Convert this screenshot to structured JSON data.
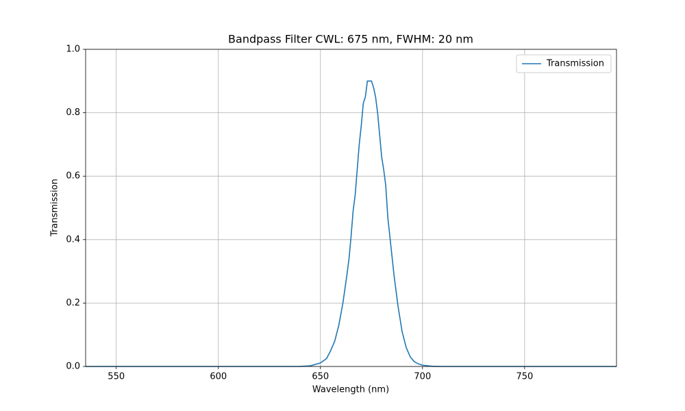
{
  "chart_data": {
    "type": "line",
    "title": "Bandpass Filter CWL: 675 nm, FWHM: 20 nm",
    "x_label": "Wavelength (nm)",
    "y_label": "Transmission",
    "x": [
      535,
      630,
      640,
      645,
      650,
      653,
      655,
      657,
      659,
      661,
      663,
      664,
      665,
      666,
      667,
      668,
      669,
      670,
      671,
      672,
      673,
      674,
      675,
      676,
      677,
      678,
      679,
      680,
      681,
      682,
      683,
      684,
      685,
      686,
      687,
      688,
      689,
      690,
      692,
      694,
      696,
      698,
      700,
      705,
      710,
      795
    ],
    "series": [
      {
        "name": "Transmission",
        "color": "#1f77b4",
        "values": [
          0,
          0,
          0.0002,
          0.002,
          0.011,
          0.025,
          0.05,
          0.08,
          0.13,
          0.2,
          0.29,
          0.34,
          0.41,
          0.49,
          0.54,
          0.62,
          0.7,
          0.76,
          0.83,
          0.85,
          0.9,
          0.9,
          0.9,
          0.88,
          0.85,
          0.8,
          0.73,
          0.66,
          0.62,
          0.57,
          0.47,
          0.41,
          0.35,
          0.29,
          0.24,
          0.19,
          0.15,
          0.11,
          0.06,
          0.03,
          0.015,
          0.008,
          0.004,
          0.0005,
          0,
          0
        ]
      }
    ],
    "xlim": [
      535,
      795
    ],
    "ylim": [
      0,
      1
    ],
    "xticks": [
      550,
      600,
      650,
      700,
      750
    ],
    "yticks": [
      {
        "value": 0,
        "label": "0.0"
      },
      {
        "value": 0.2,
        "label": "0.2"
      },
      {
        "value": 0.4,
        "label": "0.4"
      },
      {
        "value": 0.6,
        "label": "0.6"
      },
      {
        "value": 0.8,
        "label": "0.8"
      },
      {
        "value": 1,
        "label": "1.0"
      }
    ],
    "grid": true,
    "legend": "upper right"
  }
}
